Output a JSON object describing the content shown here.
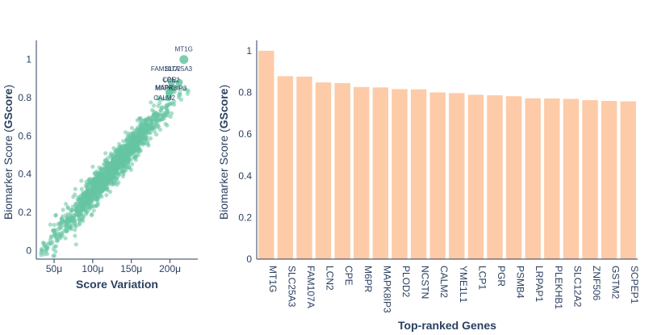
{
  "chart_data": [
    {
      "type": "scatter",
      "xlabel": "Score Variation",
      "ylabel": "Biomarker Score (GScore)",
      "ylabel_plain": "Biomarker Score (",
      "ylabel_bold": "GScore",
      "ylabel_close": ")",
      "x_tick_labels": [
        "50μ",
        "100μ",
        "150μ",
        "200μ"
      ],
      "x_tick_values": [
        5e-05,
        0.0001,
        0.00015,
        0.0002
      ],
      "y_tick_labels": [
        "0",
        "0.2",
        "0.4",
        "0.6",
        "0.8",
        "1"
      ],
      "y_tick_values": [
        0,
        0.2,
        0.4,
        0.6,
        0.8,
        1
      ],
      "xlim": [
        2.7e-05,
        0.000236
      ],
      "ylim": [
        -0.045,
        1.1
      ],
      "point_color": "#66c5a3",
      "n_points_bulk": 1500,
      "bulk_trend": {
        "x_start": 3.8e-05,
        "y_start": 0.0,
        "x_end": 0.00021,
        "y_end": 0.84
      },
      "highlighted": [
        {
          "label": "MT1G",
          "x": 0.000218,
          "y": 1.0
        },
        {
          "label": "SLC25A3",
          "x": 0.000212,
          "y": 0.88
        },
        {
          "label": "FAM107A",
          "x": 0.000202,
          "y": 0.88
        },
        {
          "label": "LCN2",
          "x": 0.000204,
          "y": 0.85
        },
        {
          "label": "CPE",
          "x": 0.000201,
          "y": 0.845
        },
        {
          "label": "M6PR",
          "x": 0.000199,
          "y": 0.83
        },
        {
          "label": "MAPK8IP3",
          "x": 0.000199,
          "y": 0.825
        },
        {
          "label": "CALM2",
          "x": 0.000198,
          "y": 0.8
        }
      ]
    },
    {
      "type": "bar",
      "xlabel": "Top-ranked Genes",
      "ylabel": "Biomarker Score (GScore)",
      "ylabel_plain": "Biomarker Score (",
      "ylabel_bold": "GScore",
      "ylabel_close": ")",
      "categories": [
        "MT1G",
        "SLC25A3",
        "FAM107A",
        "LCN2",
        "CPE",
        "M6PR",
        "MAPK8IP3",
        "PLOD2",
        "NCSTN",
        "CALM2",
        "YME1L1",
        "LCP1",
        "PGR",
        "PSMB4",
        "LRPAP1",
        "PLEKHB1",
        "SLC12A2",
        "ZNF506",
        "GSTM2",
        "SCPEP1"
      ],
      "values": [
        1.0,
        0.878,
        0.876,
        0.848,
        0.845,
        0.826,
        0.824,
        0.816,
        0.815,
        0.8,
        0.797,
        0.789,
        0.786,
        0.782,
        0.772,
        0.771,
        0.769,
        0.763,
        0.759,
        0.757
      ],
      "y_tick_labels": [
        "0",
        "0.2",
        "0.4",
        "0.6",
        "0.8",
        "1"
      ],
      "y_tick_values": [
        0,
        0.2,
        0.4,
        0.6,
        0.8,
        1
      ],
      "ylim": [
        0,
        1.05
      ],
      "bar_color": "#fdcba7"
    }
  ]
}
